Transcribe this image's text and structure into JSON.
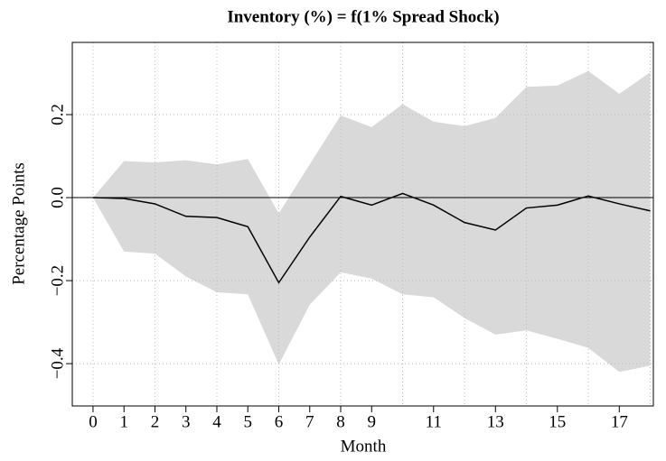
{
  "chart_data": {
    "type": "band_line",
    "title": "Inventory (%) = f(1% Spread Shock)",
    "xlabel": "Month",
    "ylabel": "Percentage Points",
    "x": [
      0,
      1,
      2,
      3,
      4,
      5,
      6,
      7,
      8,
      9,
      10,
      11,
      12,
      13,
      14,
      15,
      16,
      17,
      18
    ],
    "series": [
      {
        "color": "#000000",
        "values": [
          0,
          -0.002,
          -0.015,
          -0.045,
          -0.048,
          -0.07,
          -0.205,
          -0.095,
          0.003,
          -0.018,
          0.01,
          -0.018,
          -0.06,
          -0.078,
          -0.025,
          -0.018,
          0.004,
          -0.015,
          -0.032
        ],
        "band_color": "#d9d9d9",
        "upper": [
          0,
          0.088,
          0.085,
          0.09,
          0.08,
          0.093,
          -0.038,
          0.08,
          0.198,
          0.17,
          0.225,
          0.183,
          0.172,
          0.192,
          0.267,
          0.27,
          0.305,
          0.25,
          0.302
        ],
        "lower": [
          0,
          -0.13,
          -0.135,
          -0.19,
          -0.228,
          -0.233,
          -0.402,
          -0.258,
          -0.18,
          -0.195,
          -0.233,
          -0.24,
          -0.29,
          -0.33,
          -0.32,
          -0.34,
          -0.362,
          -0.42,
          -0.405
        ]
      }
    ],
    "hline": 0,
    "xlim": [
      -0.67,
      18.1
    ],
    "ylim": [
      -0.502,
      0.374
    ],
    "xticks": [
      0,
      1,
      2,
      3,
      4,
      5,
      6,
      7,
      8,
      9,
      11,
      13,
      15,
      17
    ],
    "xgrid": [
      0,
      2,
      4,
      6,
      8,
      10,
      12,
      14,
      16,
      18
    ],
    "yticks": [
      {
        "value": -0.4,
        "label": "−0.4"
      },
      {
        "value": -0.2,
        "label": "−0.2"
      },
      {
        "value": 0,
        "label": "0.0"
      },
      0.2
    ],
    "grid": true
  }
}
